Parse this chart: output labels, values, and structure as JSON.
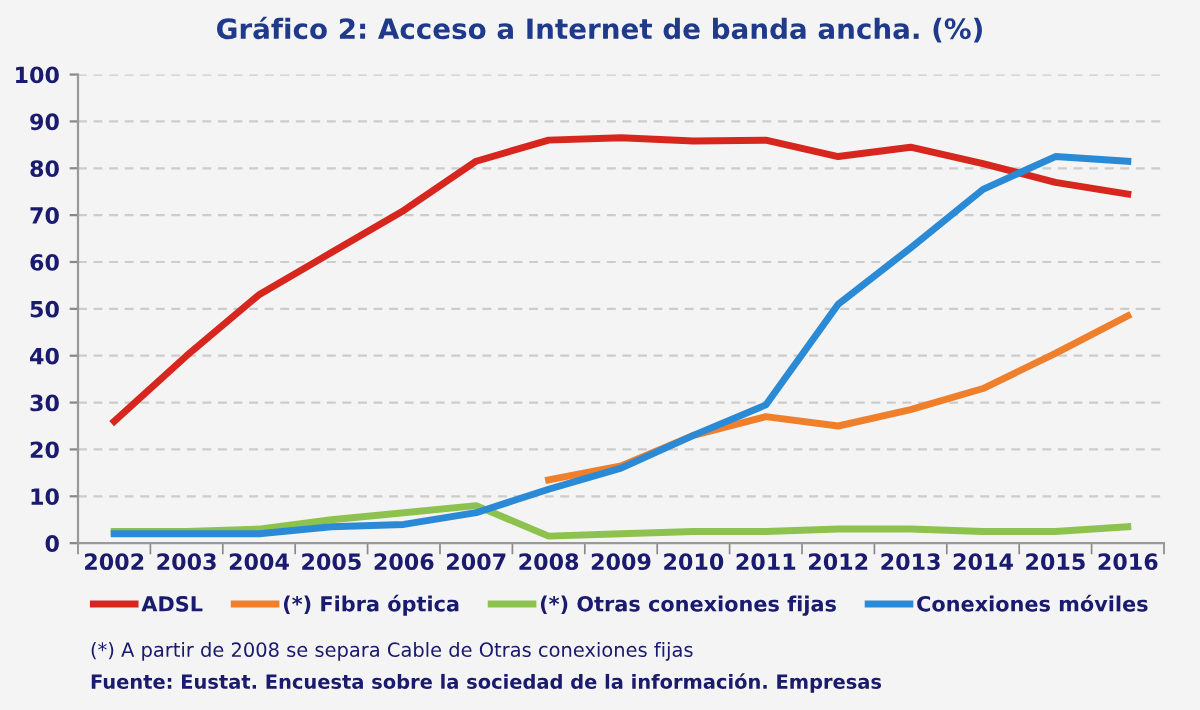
{
  "chart_data": {
    "type": "line",
    "title": "Gráfico 2: Acceso a Internet de banda ancha. (%)",
    "categories": [
      "2002",
      "2003",
      "2004",
      "2005",
      "2006",
      "2007",
      "2008",
      "2009",
      "2010",
      "2011",
      "2012",
      "2013",
      "2014",
      "2015",
      "2016"
    ],
    "series": [
      {
        "name": "ADSL",
        "color": "#d7261e",
        "values": [
          26,
          40,
          53,
          62,
          71,
          81.5,
          86,
          86.5,
          85.8,
          86,
          82.5,
          84.5,
          81,
          77,
          74.5
        ]
      },
      {
        "name": "(*) Fibra óptica",
        "color": "#f07f2c",
        "values": [
          null,
          null,
          null,
          null,
          null,
          null,
          13.5,
          16.5,
          23,
          27,
          25,
          28.5,
          33,
          40.5,
          48.5
        ]
      },
      {
        "name": "(*) Otras conexiones fijas",
        "color": "#8dc24f",
        "values": [
          2.5,
          2.5,
          3,
          5,
          6.5,
          8,
          1.5,
          2,
          2.5,
          2.5,
          3,
          3,
          2.5,
          2.5,
          3.5
        ]
      },
      {
        "name": "Conexiones móviles",
        "color": "#2b8ad6",
        "values": [
          2,
          2,
          2,
          3.5,
          4,
          6.5,
          11.5,
          16,
          23,
          29.5,
          51,
          63,
          75.5,
          82.5,
          81.5
        ]
      }
    ],
    "ylim": [
      0,
      100
    ],
    "yticks": [
      0,
      10,
      20,
      30,
      40,
      50,
      60,
      70,
      80,
      90,
      100
    ],
    "grid": "y",
    "legend": "bottom",
    "marker": "none",
    "line_style": "solid",
    "annotations": [
      "(*) A partir de 2008 se separa Cable de Otras conexiones fijas",
      "Fuente: Eustat. Encuesta sobre la sociedad de la información. Empresas"
    ]
  }
}
